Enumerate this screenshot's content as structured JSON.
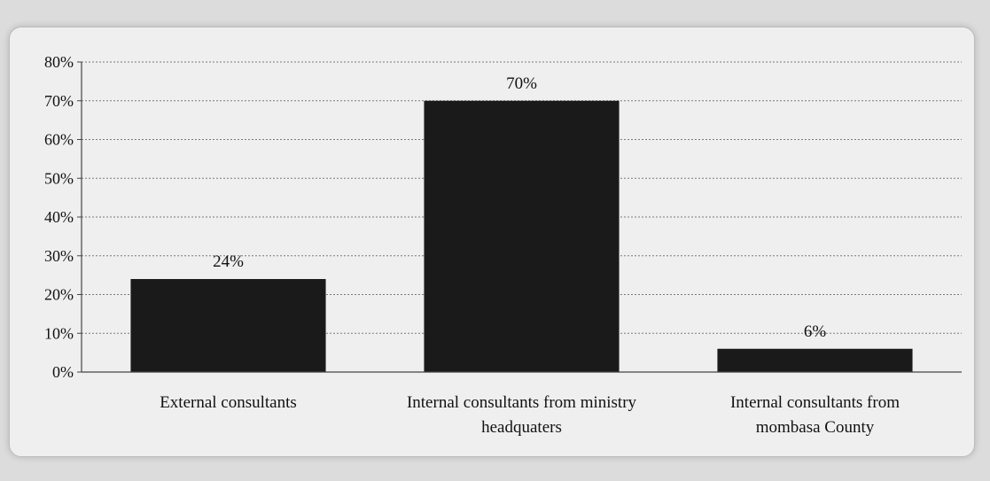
{
  "chart_data": {
    "type": "bar",
    "title": "",
    "xlabel": "",
    "ylabel": "",
    "ylim": [
      0,
      80
    ],
    "yticks": [
      "0%",
      "10%",
      "20%",
      "30%",
      "40%",
      "50%",
      "60%",
      "70%",
      "80%"
    ],
    "grid": true,
    "categories": [
      [
        "External consultants"
      ],
      [
        "Internal consultants from ministry",
        "headquaters"
      ],
      [
        "Internal consultants from",
        "mombasa County"
      ]
    ],
    "values": [
      24,
      70,
      6
    ],
    "data_labels": [
      "24%",
      "70%",
      "6%"
    ],
    "bar_color": "#1a1a1a"
  }
}
